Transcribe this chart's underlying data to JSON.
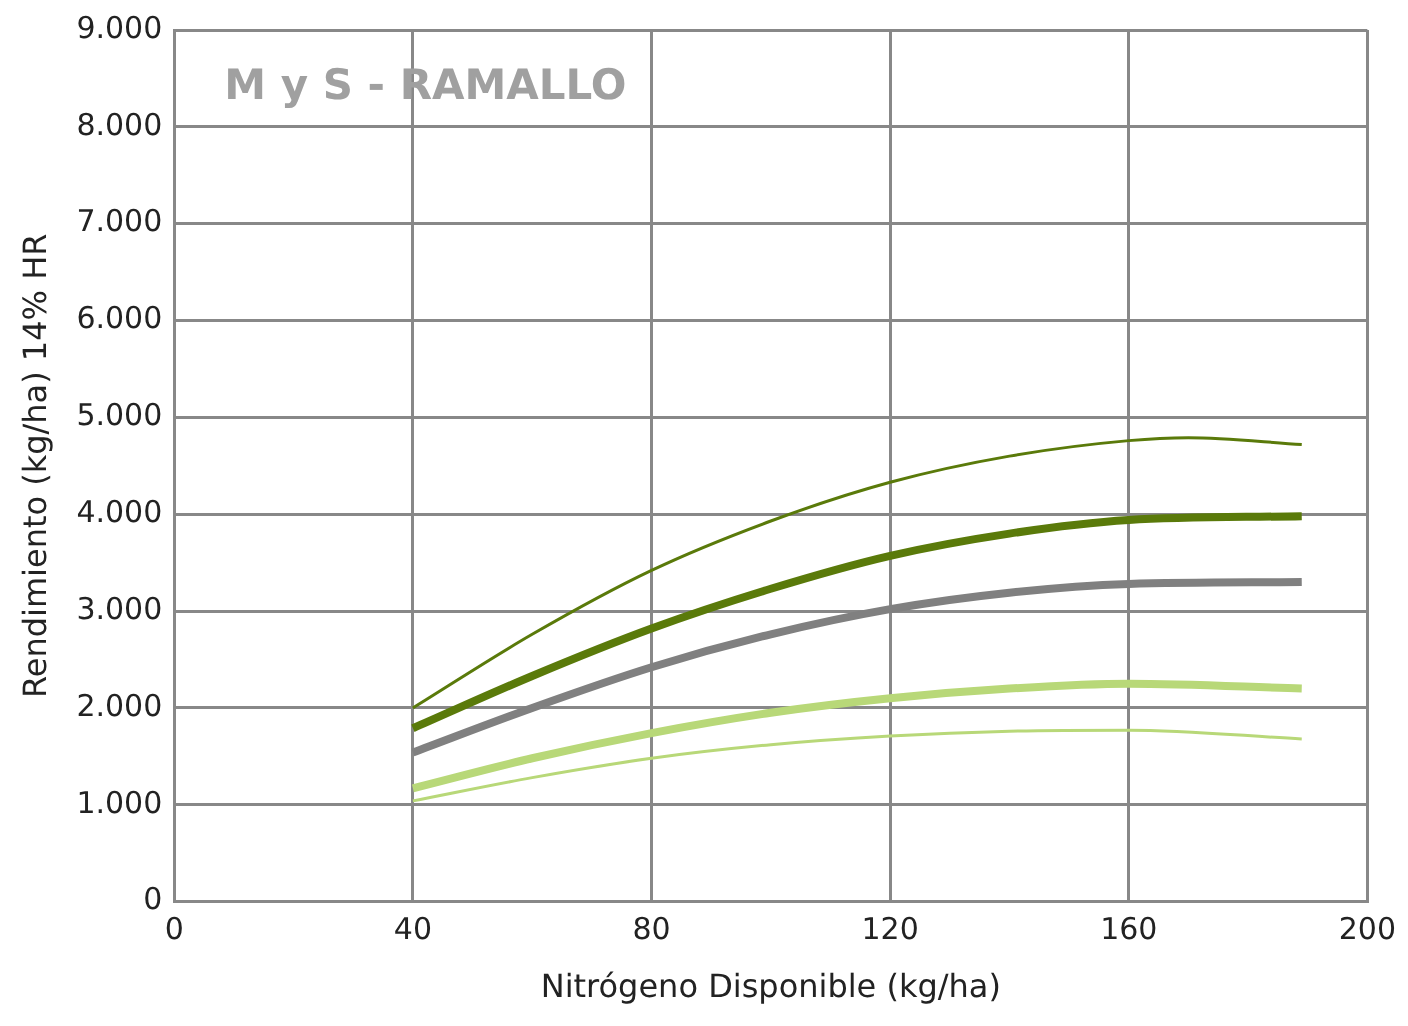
{
  "chart_data": {
    "type": "line",
    "title": "M y S - RAMALLO",
    "xlabel": "Nitrógeno Disponible (kg/ha)",
    "ylabel": "Rendimiento (kg/ha) 14% HR",
    "xlim": [
      0,
      200
    ],
    "xticks": [
      0,
      40,
      80,
      120,
      160,
      200
    ],
    "ylim": [
      0,
      9000
    ],
    "yticks": [
      {
        "value": 0,
        "label": "0"
      },
      {
        "value": 1000,
        "label": "1.000"
      },
      {
        "value": 2000,
        "label": "2.000"
      },
      {
        "value": 3000,
        "label": "3.000"
      },
      {
        "value": 4000,
        "label": "4.000"
      },
      {
        "value": 5000,
        "label": "5.000"
      },
      {
        "value": 6000,
        "label": "6.000"
      },
      {
        "value": 7000,
        "label": "7.000"
      },
      {
        "value": 8000,
        "label": "8.000"
      },
      {
        "value": 9000,
        "label": "9.000"
      }
    ],
    "grid": true,
    "marker": "none",
    "line_style": "solid",
    "series": [
      {
        "color": "#5a7a0a",
        "x": [
          40,
          60,
          80,
          100,
          120,
          140,
          160,
          170,
          189
        ],
        "values": [
          2000,
          2760,
          3420,
          3930,
          4330,
          4600,
          4760,
          4790,
          4720
        ]
      },
      {
        "color": "#5a7a0a",
        "x": [
          40,
          60,
          80,
          100,
          120,
          140,
          160,
          189
        ],
        "values": [
          1790,
          2330,
          2820,
          3230,
          3570,
          3800,
          3940,
          3980
        ]
      },
      {
        "color": "#808080",
        "x": [
          40,
          60,
          80,
          100,
          120,
          140,
          160,
          189
        ],
        "values": [
          1540,
          2000,
          2420,
          2760,
          3020,
          3190,
          3280,
          3300
        ]
      },
      {
        "color": "#b8d878",
        "x": [
          40,
          60,
          80,
          100,
          120,
          140,
          160,
          189
        ],
        "values": [
          1170,
          1480,
          1740,
          1950,
          2100,
          2200,
          2250,
          2200
        ]
      },
      {
        "color": "#b8d878",
        "x": [
          40,
          60,
          80,
          100,
          120,
          140,
          160,
          189
        ],
        "values": [
          1040,
          1280,
          1480,
          1620,
          1710,
          1760,
          1770,
          1680
        ]
      }
    ]
  }
}
